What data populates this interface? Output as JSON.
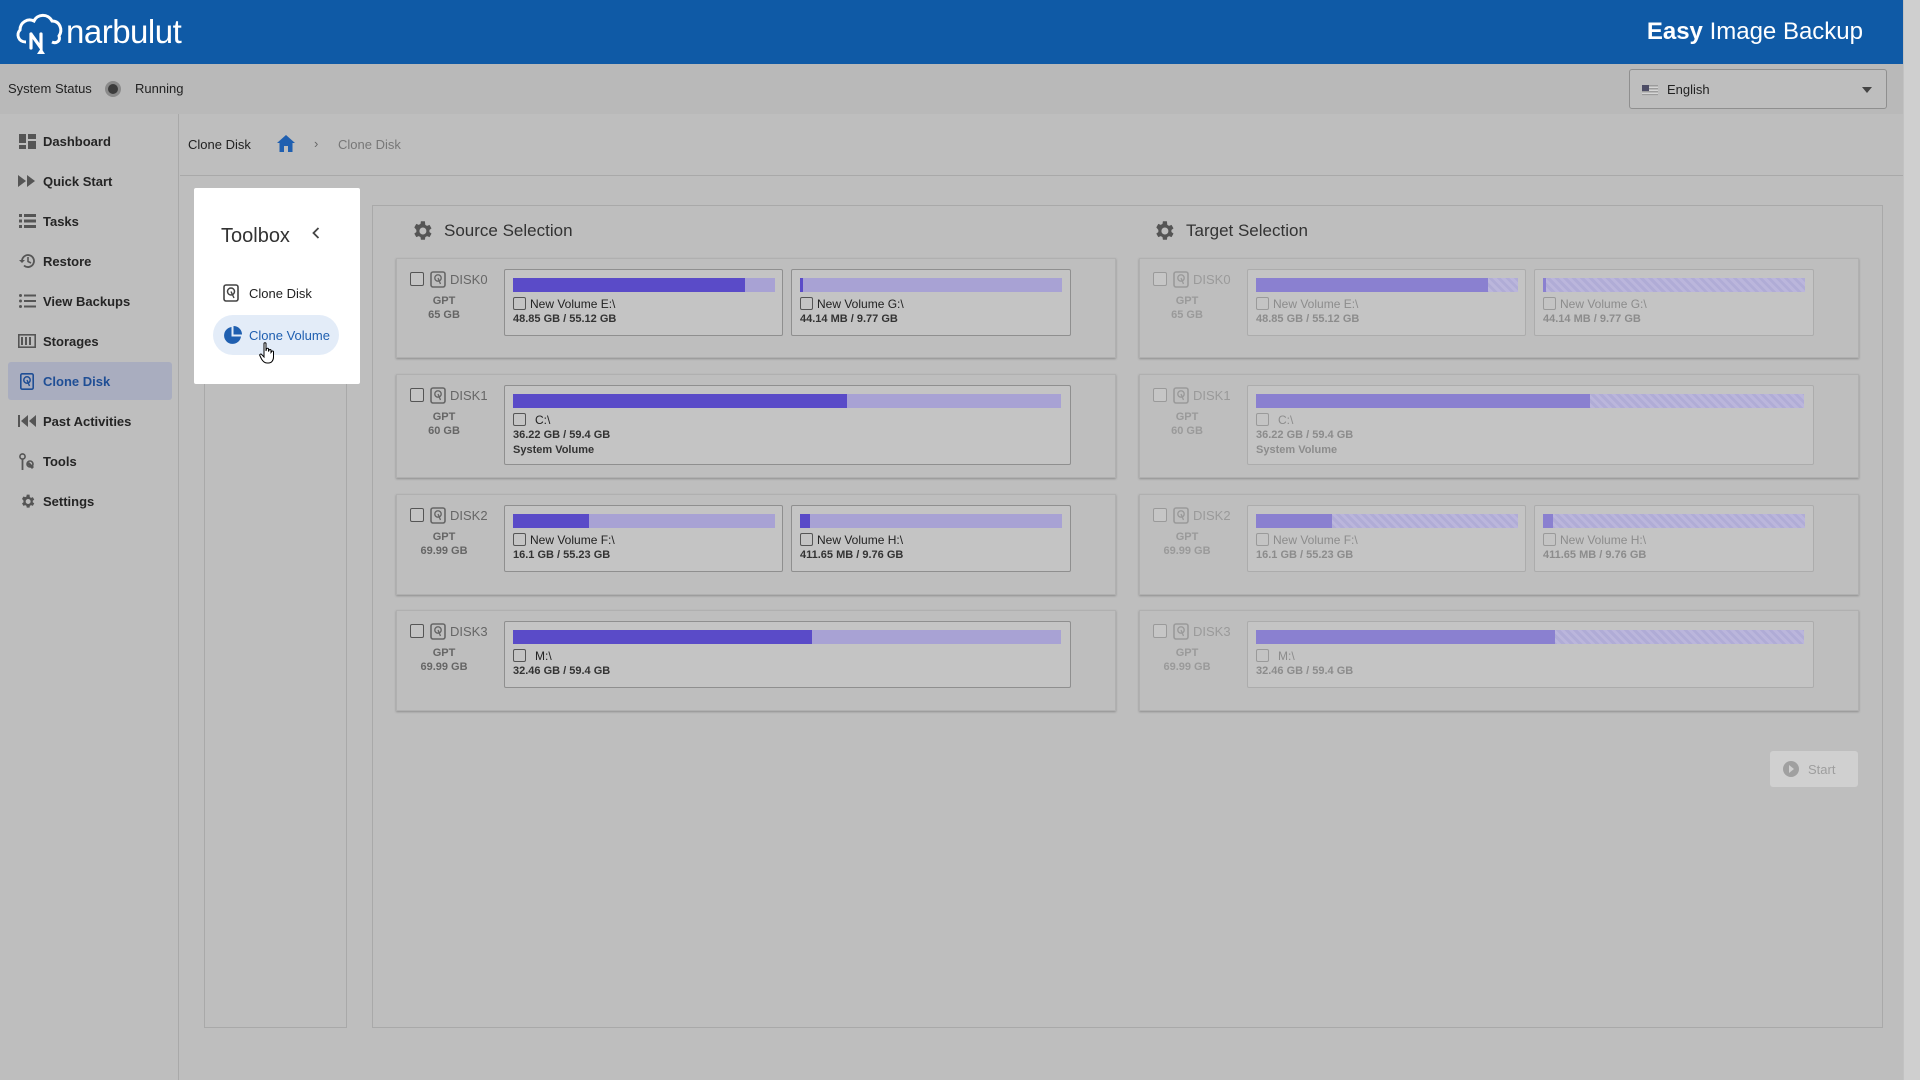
{
  "header": {
    "brand": "narbulut",
    "app_name_bold": "Easy",
    "app_name_rest": " Image Backup",
    "bg_color": "#0f5aa6"
  },
  "status": {
    "label": "System Status",
    "value": "Running"
  },
  "language": {
    "selected": "English"
  },
  "sidebar": {
    "items": [
      {
        "label": "Dashboard",
        "icon": "dashboard-icon"
      },
      {
        "label": "Quick Start",
        "icon": "fast-forward-icon"
      },
      {
        "label": "Tasks",
        "icon": "list-icon"
      },
      {
        "label": "Restore",
        "icon": "history-icon"
      },
      {
        "label": "View Backups",
        "icon": "bullet-list-icon"
      },
      {
        "label": "Storages",
        "icon": "storage-icon"
      },
      {
        "label": "Clone Disk",
        "icon": "hard-disk-icon",
        "active": true
      },
      {
        "label": "Past Activities",
        "icon": "rewind-icon"
      },
      {
        "label": "Tools",
        "icon": "tools-icon"
      },
      {
        "label": "Settings",
        "icon": "gear-icon"
      }
    ]
  },
  "breadcrumb": {
    "title": "Clone Disk",
    "separator": "›",
    "current": "Clone Disk"
  },
  "toolbox": {
    "title": "Toolbox",
    "items": [
      {
        "label": "Clone Disk",
        "icon": "hard-disk-icon"
      },
      {
        "label": "Clone Volume",
        "icon": "pie-chart-icon",
        "active": true
      }
    ]
  },
  "source": {
    "title": "Source Selection"
  },
  "target": {
    "title": "Target Selection"
  },
  "disks": [
    {
      "name": "DISK0",
      "type": "GPT",
      "size": "65 GB",
      "volumes": [
        {
          "label": "New Volume E:\\",
          "used": "48.85 GB / 55.12 GB",
          "fraction": 0.886
        },
        {
          "label": "New Volume G:\\",
          "used": "44.14 MB / 9.77 GB",
          "fraction": 0.005
        }
      ]
    },
    {
      "name": "DISK1",
      "type": "GPT",
      "size": "60 GB",
      "volumes": [
        {
          "label": "C:\\",
          "used": "36.22 GB / 59.4 GB",
          "fraction": 0.61,
          "extra": "System Volume"
        }
      ]
    },
    {
      "name": "DISK2",
      "type": "GPT",
      "size": "69.99 GB",
      "volumes": [
        {
          "label": "New Volume F:\\",
          "used": "16.1 GB / 55.23 GB",
          "fraction": 0.29
        },
        {
          "label": "New Volume H:\\",
          "used": "411.65 MB / 9.76 GB",
          "fraction": 0.04
        }
      ]
    },
    {
      "name": "DISK3",
      "type": "GPT",
      "size": "69.99 GB",
      "volumes": [
        {
          "label": "M:\\",
          "used": "32.46 GB / 59.4 GB",
          "fraction": 0.546
        }
      ]
    }
  ],
  "start_button": {
    "label": "Start"
  }
}
